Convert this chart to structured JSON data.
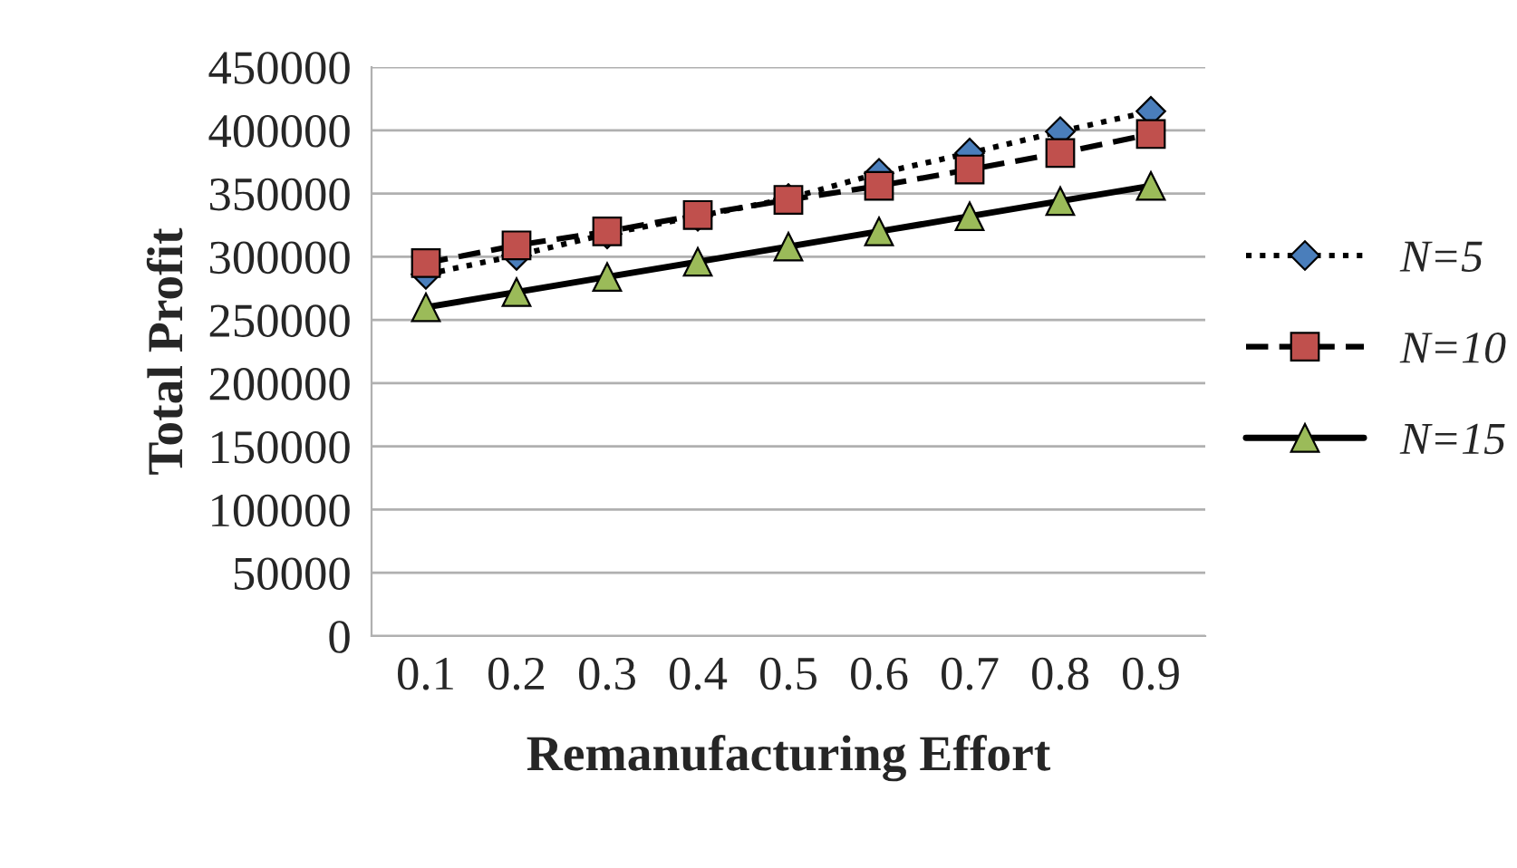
{
  "chart_data": {
    "type": "line",
    "xlabel": "Remanufacturing Effort",
    "ylabel": "Total Profit",
    "categories": [
      "0.1",
      "0.2",
      "0.3",
      "0.4",
      "0.5",
      "0.6",
      "0.7",
      "0.8",
      "0.9"
    ],
    "series": [
      {
        "name": "N=5",
        "color": "#4a7ebb",
        "marker": "diamond",
        "line_style": "dotted",
        "values": [
          286000,
          301000,
          318000,
          332000,
          346000,
          366000,
          382000,
          399000,
          415000
        ]
      },
      {
        "name": "N=10",
        "color": "#c0504d",
        "marker": "square",
        "line_style": "dashed",
        "values": [
          295000,
          309000,
          320000,
          333000,
          345000,
          356000,
          369000,
          382000,
          397000
        ]
      },
      {
        "name": "N=15",
        "color": "#9bbb59",
        "marker": "triangle",
        "line_style": "solid",
        "values": [
          260000,
          272000,
          284000,
          296000,
          308000,
          320000,
          332000,
          344000,
          356000
        ]
      }
    ],
    "ylim": [
      0,
      450000
    ],
    "yticks": [
      0,
      50000,
      100000,
      150000,
      200000,
      250000,
      300000,
      350000,
      400000,
      450000
    ],
    "grid": "y",
    "legend": "right"
  }
}
